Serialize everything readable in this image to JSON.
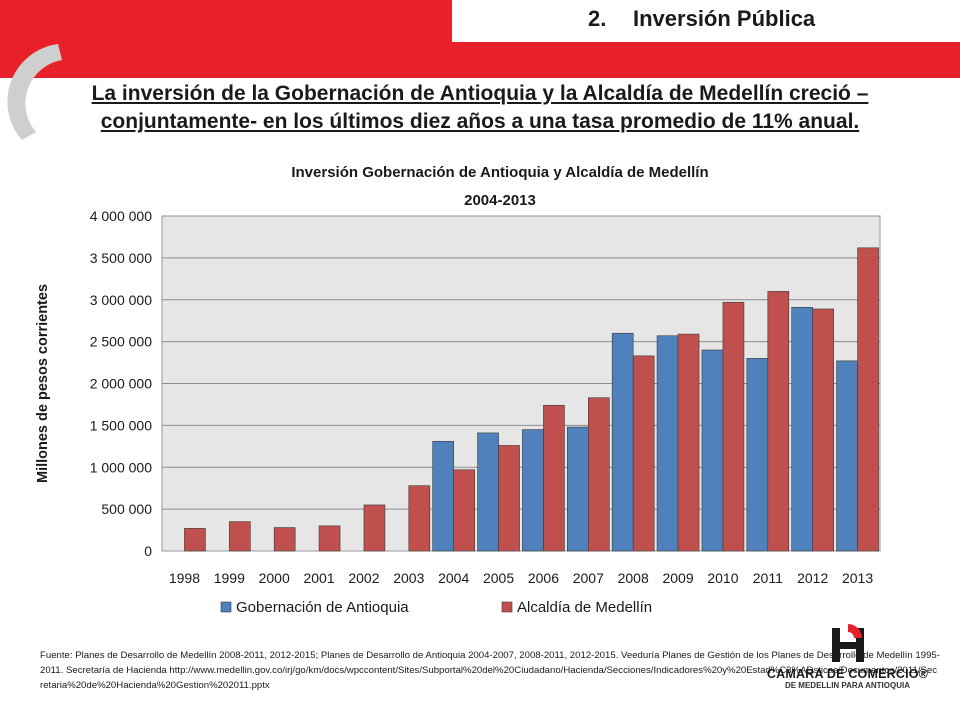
{
  "header": {
    "section_number": "2.",
    "section_title": "Inversión Pública"
  },
  "headline": {
    "line1": "La inversión de la Gobernación de Antioquia y la Alcaldía de Medellín creció –",
    "line2": "conjuntamente- en los últimos diez años a una tasa promedio de 11% anual."
  },
  "chart_data": {
    "type": "bar",
    "title": "Inversión Gobernación de Antioquia  y Alcaldía de Medellín",
    "subtitle": "2004-2013",
    "xlabel": "",
    "ylabel": "Millones de pesos corrientes",
    "categories": [
      "1998",
      "1999",
      "2000",
      "2001",
      "2002",
      "2003",
      "2004",
      "2005",
      "2006",
      "2007",
      "2008",
      "2009",
      "2010",
      "2011",
      "2012",
      "2013"
    ],
    "series": [
      {
        "name": "Gobernación de Antioquia",
        "color": "#4f81bd",
        "values": [
          null,
          null,
          null,
          null,
          null,
          null,
          1310000,
          1410000,
          1450000,
          1480000,
          2600000,
          2570000,
          2400000,
          2300000,
          2910000,
          2270000
        ]
      },
      {
        "name": "Alcaldía de Medellín",
        "color": "#c0504d",
        "values": [
          270000,
          350000,
          280000,
          300000,
          550000,
          780000,
          970000,
          1260000,
          1740000,
          1830000,
          2330000,
          2590000,
          2970000,
          3100000,
          2890000,
          3620000
        ]
      }
    ],
    "ylim": [
      0,
      4000000
    ],
    "yticks": [
      0,
      500000,
      1000000,
      1500000,
      2000000,
      2500000,
      3000000,
      3500000,
      4000000
    ],
    "ytick_labels": [
      "0",
      "500 000",
      "1 000 000",
      "1 500 000",
      "2 000 000",
      "2 500 000",
      "3 000 000",
      "3 500 000",
      "4 000 000"
    ],
    "grid": true,
    "legend": "bottom"
  },
  "source": {
    "text": "Fuente: Planes de Desarrollo de Medellín 2008-2011, 2012-2015; Planes de Desarrollo de Antioquia 2004-2007, 2008-2011, 2012-2015. Veeduría Planes de Gestión de los Planes de Desarrollo de Medellín 1995-2011. Secretaría de Hacienda http://www.medellin.gov.co/irj/go/km/docs/wpccontent/Sites/Subportal%20del%20Ciudadano/Hacienda/Secciones/Indicadores%20y%20Estad%C3%ADsticas/Documentos/2011/Secretaria%20de%20Hacienda%20Gestion%202011.pptx"
  },
  "logo": {
    "name": "CAMARA DE COMERCIO®",
    "sub": "DE MEDELLIN PARA ANTIOQUIA"
  }
}
